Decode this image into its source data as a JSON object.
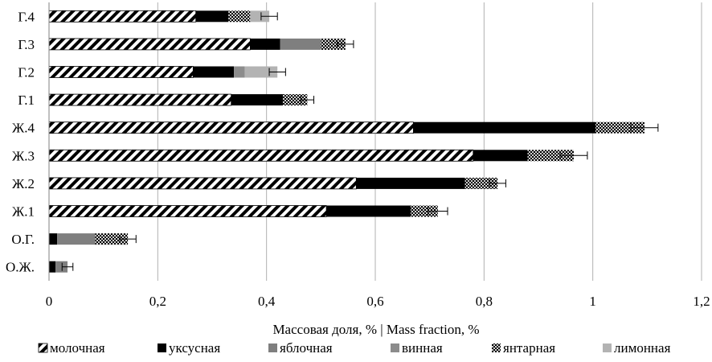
{
  "chart_data": {
    "type": "bar",
    "orientation": "horizontal",
    "stacked": true,
    "categories": [
      "Г.4",
      "Г.3",
      "Г.2",
      "Г.1",
      "Ж.4",
      "Ж.3",
      "Ж.2",
      "Ж.1",
      "О.Г.",
      "О.Ж."
    ],
    "series": [
      {
        "name": "молочная",
        "color": "#ffffff",
        "pattern": "hatch",
        "values": [
          0.27,
          0.37,
          0.265,
          0.335,
          0.67,
          0.78,
          0.565,
          0.51,
          0,
          0
        ]
      },
      {
        "name": "уксусная",
        "color": "#000000",
        "pattern": "solid",
        "values": [
          0.06,
          0.055,
          0.075,
          0.095,
          0.335,
          0.1,
          0.2,
          0.155,
          0.015,
          0.012
        ]
      },
      {
        "name": "яблочная",
        "color": "#7f7f7f",
        "pattern": "solid",
        "values": [
          0,
          0.075,
          0,
          0,
          0,
          0,
          0,
          0,
          0.07,
          0.022
        ]
      },
      {
        "name": "винная",
        "color": "#8c8c8c",
        "pattern": "solid",
        "values": [
          0,
          0,
          0.02,
          0,
          0,
          0,
          0,
          0,
          0,
          0
        ]
      },
      {
        "name": "янтарная",
        "color": "#bfbfbf",
        "pattern": "dots",
        "values": [
          0.04,
          0.045,
          0,
          0.045,
          0.09,
          0.085,
          0.06,
          0.05,
          0.06,
          0
        ]
      },
      {
        "name": "лимонная",
        "color": "#b3b3b3",
        "pattern": "solid",
        "values": [
          0.035,
          0,
          0.06,
          0,
          0,
          0,
          0,
          0,
          0,
          0
        ]
      }
    ],
    "totals": [
      0.405,
      0.545,
      0.42,
      0.475,
      1.095,
      0.965,
      0.825,
      0.715,
      0.145,
      0.034
    ],
    "error_bars": [
      0.015,
      0.015,
      0.015,
      0.012,
      0.025,
      0.025,
      0.015,
      0.018,
      0.015,
      0.01
    ],
    "xlabel": "Массовая доля, %  | Mass fraction, %",
    "ylabel": "",
    "xlim": [
      0,
      1.2
    ],
    "x_ticks": [
      "0",
      "0,2",
      "0,4",
      "0,6",
      "0,8",
      "1",
      "1,2"
    ],
    "x_tick_values": [
      0,
      0.2,
      0.4,
      0.6,
      0.8,
      1.0,
      1.2
    ],
    "grid": "vertical",
    "legend_position": "bottom"
  }
}
